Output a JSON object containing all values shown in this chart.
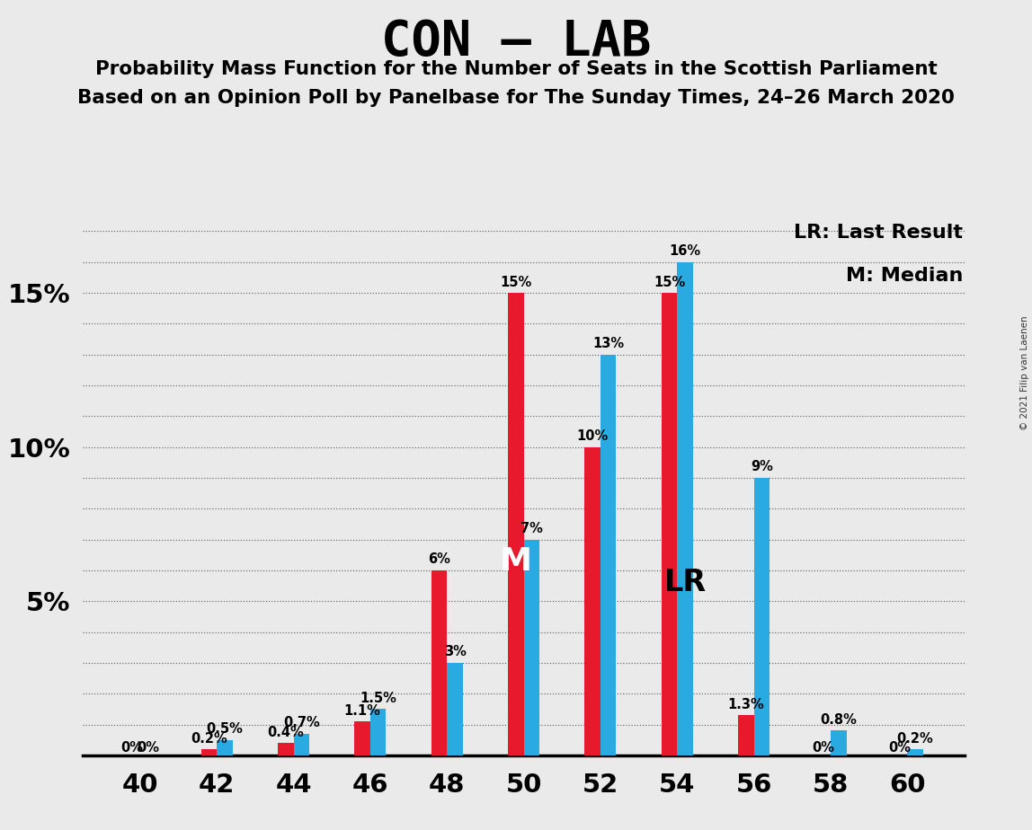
{
  "title": "CON – LAB",
  "subtitle1": "Probability Mass Function for the Number of Seats in the Scottish Parliament",
  "subtitle2": "Based on an Opinion Poll by Panelbase for The Sunday Times, 24–26 March 2020",
  "copyright": "© 2021 Filip van Laenen",
  "seats": [
    40,
    42,
    44,
    46,
    48,
    50,
    52,
    54,
    56,
    58,
    60
  ],
  "red_values": [
    0.0,
    0.2,
    0.4,
    1.1,
    6.0,
    15.0,
    10.0,
    15.0,
    1.3,
    0.0,
    0.0
  ],
  "blue_values": [
    0.0,
    0.5,
    0.7,
    1.5,
    3.0,
    7.0,
    13.0,
    16.0,
    9.0,
    0.8,
    0.2
  ],
  "red_color": "#E8192C",
  "blue_color": "#29ABE2",
  "background_color": "#EAEAEA",
  "ylim_max": 17.5,
  "median_seat": 50,
  "lr_seat": 54,
  "legend_lr": "LR: Last Result",
  "legend_m": "M: Median",
  "copyright_text": "© 2021 Filip van Laenen"
}
